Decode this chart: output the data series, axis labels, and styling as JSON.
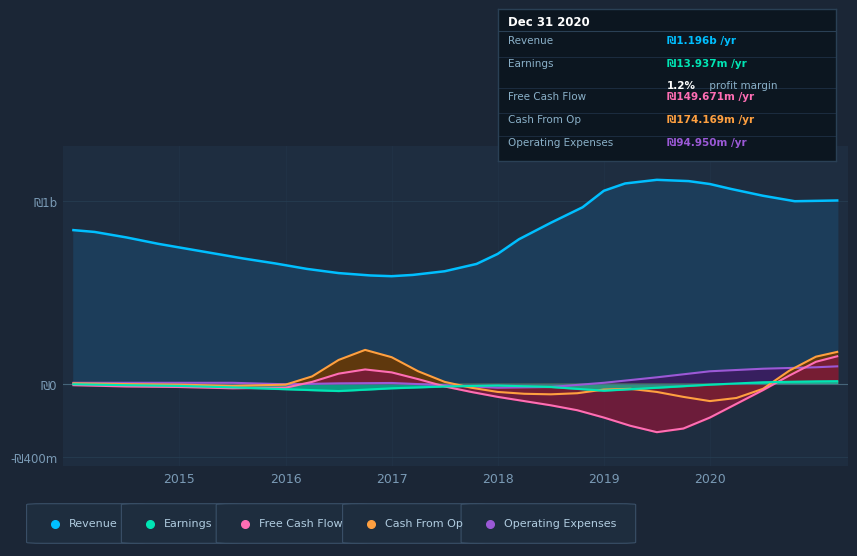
{
  "bg_color": "#1b2636",
  "plot_bg_color": "#1e2d40",
  "grid_color": "#263d52",
  "ylim": [
    -450,
    1300
  ],
  "ytick_positions": [
    -400,
    0,
    1000
  ],
  "ytick_labels": [
    "-₪400m",
    "₪0",
    "₪1b"
  ],
  "xlim": [
    2013.9,
    2021.3
  ],
  "xticks": [
    2015,
    2016,
    2017,
    2018,
    2019,
    2020
  ],
  "revenue_x": [
    2014.0,
    2014.2,
    2014.5,
    2014.8,
    2015.0,
    2015.3,
    2015.6,
    2015.9,
    2016.2,
    2016.5,
    2016.8,
    2017.0,
    2017.2,
    2017.5,
    2017.8,
    2018.0,
    2018.2,
    2018.5,
    2018.8,
    2019.0,
    2019.2,
    2019.5,
    2019.8,
    2020.0,
    2020.2,
    2020.5,
    2020.8,
    2021.0,
    2021.2
  ],
  "revenue_y": [
    840,
    830,
    800,
    765,
    745,
    715,
    685,
    658,
    628,
    605,
    592,
    588,
    595,
    615,
    655,
    710,
    790,
    880,
    965,
    1055,
    1095,
    1115,
    1108,
    1092,
    1065,
    1028,
    998,
    1000,
    1002
  ],
  "earnings_x": [
    2014.0,
    2014.5,
    2015.0,
    2015.5,
    2016.0,
    2016.5,
    2017.0,
    2017.5,
    2018.0,
    2018.5,
    2019.0,
    2019.5,
    2020.0,
    2020.5,
    2021.0,
    2021.2
  ],
  "earnings_y": [
    -3,
    -8,
    -12,
    -20,
    -30,
    -40,
    -25,
    -15,
    -10,
    -18,
    -38,
    -22,
    -5,
    8,
    13,
    14
  ],
  "fcf_x": [
    2014.0,
    2014.5,
    2015.0,
    2015.5,
    2016.0,
    2016.25,
    2016.5,
    2016.75,
    2017.0,
    2017.25,
    2017.5,
    2017.75,
    2018.0,
    2018.25,
    2018.5,
    2018.75,
    2019.0,
    2019.25,
    2019.5,
    2019.75,
    2020.0,
    2020.25,
    2020.5,
    2020.75,
    2021.0,
    2021.2
  ],
  "fcf_y": [
    -8,
    -15,
    -18,
    -25,
    -22,
    10,
    55,
    78,
    62,
    25,
    -15,
    -45,
    -72,
    -95,
    -118,
    -145,
    -185,
    -230,
    -265,
    -245,
    -185,
    -110,
    -35,
    45,
    120,
    150
  ],
  "cashop_x": [
    2014.0,
    2014.5,
    2015.0,
    2015.5,
    2016.0,
    2016.25,
    2016.5,
    2016.75,
    2017.0,
    2017.25,
    2017.5,
    2017.75,
    2018.0,
    2018.25,
    2018.5,
    2018.75,
    2019.0,
    2019.25,
    2019.5,
    2019.75,
    2020.0,
    2020.25,
    2020.5,
    2020.75,
    2021.0,
    2021.2
  ],
  "cashop_y": [
    2,
    -2,
    -5,
    -12,
    -5,
    40,
    130,
    185,
    145,
    68,
    10,
    -22,
    -45,
    -55,
    -58,
    -52,
    -32,
    -28,
    -45,
    -72,
    -95,
    -78,
    -28,
    72,
    148,
    174
  ],
  "opex_x": [
    2014.0,
    2014.5,
    2015.0,
    2015.5,
    2016.0,
    2016.5,
    2017.0,
    2017.5,
    2018.0,
    2018.5,
    2019.0,
    2019.5,
    2020.0,
    2020.5,
    2021.0,
    2021.2
  ],
  "opex_y": [
    5,
    5,
    5,
    5,
    -3,
    2,
    4,
    -8,
    -22,
    -18,
    5,
    35,
    68,
    82,
    90,
    95
  ],
  "revenue_color": "#00bfff",
  "revenue_fill": "#1c3d5a",
  "earnings_color": "#00e5b4",
  "earnings_fill": "#00e5b420",
  "fcf_color": "#ff6eb4",
  "fcf_fill": "#7a1a3a",
  "cashop_color": "#ffa040",
  "cashop_fill": "#6b3800",
  "opex_color": "#9b59d6",
  "opex_fill": "#3d1a6080",
  "legend": [
    {
      "label": "Revenue",
      "color": "#00bfff"
    },
    {
      "label": "Earnings",
      "color": "#00e5b4"
    },
    {
      "label": "Free Cash Flow",
      "color": "#ff6eb4"
    },
    {
      "label": "Cash From Op",
      "color": "#ffa040"
    },
    {
      "label": "Operating Expenses",
      "color": "#9b59d6"
    }
  ]
}
